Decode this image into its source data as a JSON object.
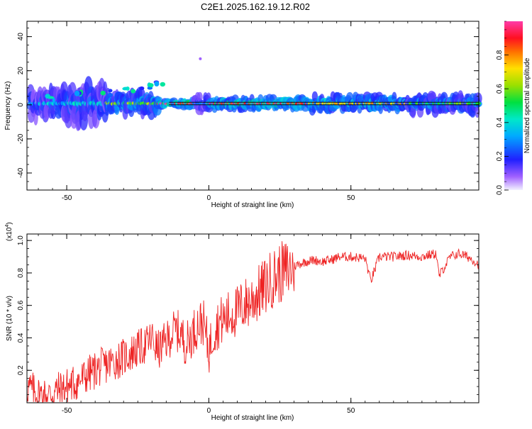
{
  "title": "C2E1.2025.162.19.12.R02",
  "colors": {
    "snr_line": "#ee2222",
    "frame": "#000000",
    "reference_line": "#000000"
  },
  "chart_data": [
    {
      "type": "heatmap",
      "name": "spectrogram",
      "xlabel": "Height of straight line (km)",
      "ylabel": "Frequency (Hz)",
      "xlim": [
        -64,
        95
      ],
      "ylim": [
        -50,
        49
      ],
      "x_ticks": [
        -50,
        0,
        50
      ],
      "x_tick_labels": [
        "-50",
        "0",
        "50"
      ],
      "y_ticks": [
        -40,
        -20,
        0,
        20,
        40
      ],
      "y_tick_labels": [
        "-40",
        "-20",
        "0",
        "20",
        "40"
      ],
      "reference_lines": [
        0,
        1.5
      ],
      "colorscale": "rainbow (violet-blue-cyan-green-yellow-red-magenta)",
      "segments": [
        {
          "x_from": -63,
          "x_to": -50,
          "freq_spread": 4,
          "intensity": 0.35
        },
        {
          "x_from": -50,
          "x_to": -36,
          "freq_spread": 5,
          "intensity": 0.4
        },
        {
          "x_from": -36,
          "x_to": -18,
          "freq_spread": 3,
          "intensity": 0.6
        },
        {
          "x_from": -18,
          "x_to": -5,
          "freq_spread": 1,
          "intensity": 0.95
        },
        {
          "x_from": -5,
          "x_to": 0,
          "freq_spread": 2,
          "intensity": 0.3
        },
        {
          "x_from": 0,
          "x_to": 35,
          "freq_spread": 1.5,
          "intensity": 0.9
        },
        {
          "x_from": 35,
          "x_to": 70,
          "freq_spread": 2,
          "intensity": 0.75
        },
        {
          "x_from": 70,
          "x_to": 95,
          "freq_spread": 2.5,
          "intensity": 0.55
        }
      ],
      "harmonic_trend": [
        {
          "x": -55,
          "y": 4
        },
        {
          "x": -45,
          "y": 6
        },
        {
          "x": -35,
          "y": 7
        },
        {
          "x": -28,
          "y": 9
        },
        {
          "x": -22,
          "y": 11
        },
        {
          "x": -18,
          "y": 13
        }
      ],
      "outlier_points": [
        {
          "x": -3,
          "y": 27
        }
      ]
    },
    {
      "type": "colorbar",
      "label": "Normalized spectral amplitude",
      "range": [
        0,
        1
      ],
      "ticks": [
        0.0,
        0.2,
        0.4,
        0.6,
        0.8
      ],
      "tick_labels": [
        "0.0",
        "0.2",
        "0.4",
        "0.6",
        "0.8"
      ]
    },
    {
      "type": "line",
      "name": "snr",
      "xlabel": "Height of straight line (km)",
      "ylabel": "SNR (10 * v/v)",
      "scale_label": "(x10",
      "scale_exponent": "4",
      "scale_close": ")",
      "xlim": [
        -64,
        95
      ],
      "ylim": [
        0,
        1.04
      ],
      "x_ticks": [
        -50,
        0,
        50
      ],
      "x_tick_labels": [
        "-50",
        "0",
        "50"
      ],
      "y_ticks": [
        0.2,
        0.4,
        0.6,
        0.8,
        1.0
      ],
      "y_tick_labels": [
        "0.2",
        "0.4",
        "0.6",
        "0.8",
        "1.0"
      ],
      "series": [
        {
          "name": "",
          "x": [
            -64,
            -60,
            -57,
            -54,
            -50,
            -46,
            -42,
            -38,
            -34,
            -30,
            -26,
            -22,
            -20,
            -18,
            -16,
            -14,
            -12,
            -10,
            -8,
            -6,
            -4,
            -2,
            0,
            2,
            4,
            6,
            8,
            10,
            12,
            14,
            16,
            18,
            20,
            22,
            25,
            28,
            31,
            34,
            37,
            40,
            43,
            46,
            50,
            55,
            57,
            60,
            65,
            70,
            75,
            80,
            81,
            85,
            88,
            91,
            93,
            95
          ],
          "y": [
            0.1,
            0.05,
            0.04,
            0.07,
            0.1,
            0.13,
            0.18,
            0.22,
            0.25,
            0.28,
            0.32,
            0.36,
            0.4,
            0.32,
            0.36,
            0.4,
            0.45,
            0.43,
            0.36,
            0.42,
            0.48,
            0.5,
            0.32,
            0.46,
            0.5,
            0.52,
            0.55,
            0.56,
            0.6,
            0.62,
            0.65,
            0.68,
            0.72,
            0.76,
            0.8,
            0.82,
            0.85,
            0.87,
            0.88,
            0.87,
            0.88,
            0.9,
            0.9,
            0.89,
            0.75,
            0.9,
            0.9,
            0.91,
            0.9,
            0.92,
            0.78,
            0.9,
            0.92,
            0.9,
            0.88,
            0.85
          ]
        }
      ]
    }
  ]
}
